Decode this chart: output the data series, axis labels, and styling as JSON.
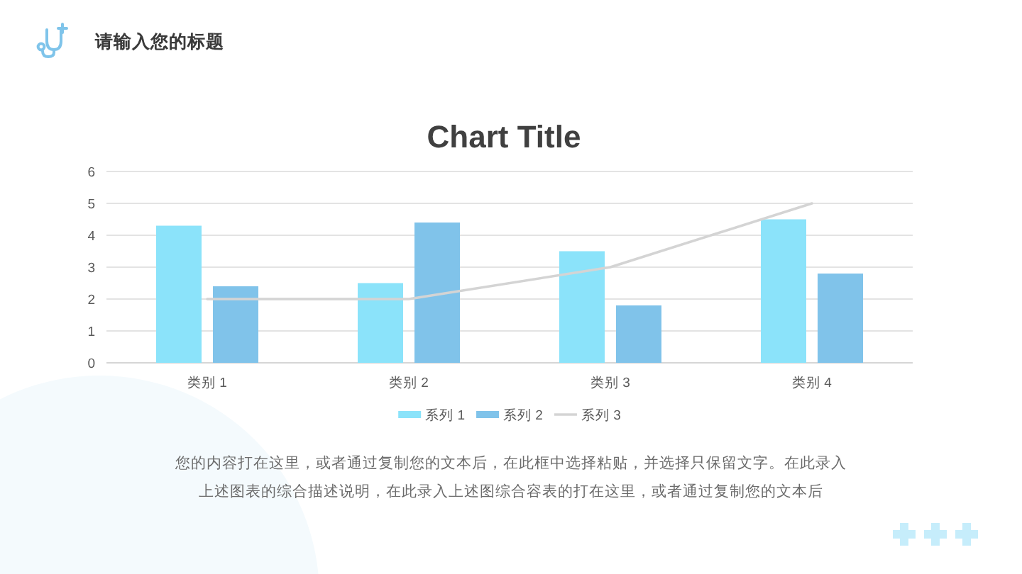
{
  "chart_data": {
    "type": "bar",
    "title": "Chart Title",
    "categories": [
      "类别 1",
      "类别 2",
      "类别 3",
      "类别 4"
    ],
    "series": [
      {
        "name": "系列 1",
        "color": "#8be3fa",
        "values": [
          4.3,
          2.5,
          3.5,
          4.5
        ]
      },
      {
        "name": "系列 2",
        "color": "#80c3ea",
        "values": [
          2.4,
          4.4,
          1.8,
          2.8
        ]
      },
      {
        "name": "系列 3",
        "type": "line",
        "color": "#d4d4d4",
        "values": [
          2,
          2,
          3,
          5
        ]
      }
    ],
    "ylim": [
      0,
      6
    ],
    "yticks": [
      0,
      1,
      2,
      3,
      4,
      5,
      6
    ],
    "grid": "y",
    "legend": "bottom",
    "annotations": [
      "请输入您的标题",
      "您的内容打在这里，或者通过复制您的文本后，在此框中选择粘贴，并选择只保留文字。在此录入",
      "上述图表的综合描述说明，在此录入上述图综合容表的打在这里，或者通过复制您的文本后"
    ]
  }
}
